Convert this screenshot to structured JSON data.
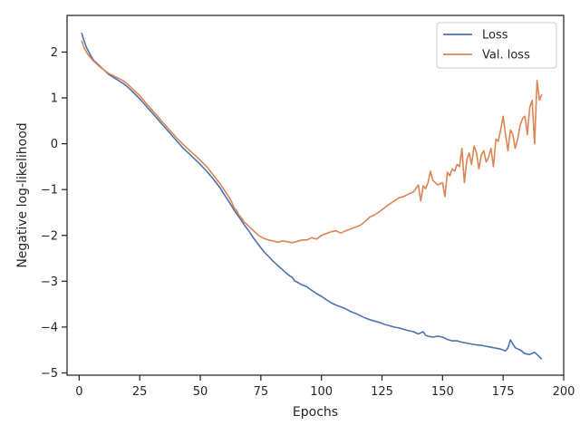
{
  "chart_data": {
    "type": "line",
    "title": "",
    "xlabel": "Epochs",
    "ylabel": "Negative log-likelihood",
    "xlim": [
      -5,
      200
    ],
    "ylim": [
      -5.05,
      2.8
    ],
    "xticks": [
      0,
      25,
      50,
      75,
      100,
      125,
      150,
      175,
      200
    ],
    "yticks": [
      -5,
      -4,
      -3,
      -2,
      -1,
      0,
      1,
      2
    ],
    "grid": false,
    "legend_position": "top-right",
    "series": [
      {
        "name": "Loss",
        "color": "#4c72b0",
        "x": [
          1,
          2,
          3,
          4,
          5,
          6,
          8,
          10,
          12,
          15,
          18,
          20,
          22,
          25,
          28,
          30,
          33,
          35,
          38,
          40,
          43,
          45,
          48,
          50,
          53,
          55,
          58,
          60,
          62,
          64,
          66,
          68,
          70,
          72,
          74,
          76,
          78,
          80,
          82,
          84,
          86,
          88,
          89,
          90,
          92,
          94,
          96,
          98,
          100,
          102,
          104,
          106,
          108,
          110,
          112,
          114,
          116,
          118,
          120,
          122,
          124,
          126,
          128,
          130,
          132,
          134,
          136,
          138,
          140,
          142,
          143,
          144,
          146,
          148,
          150,
          152,
          154,
          156,
          158,
          160,
          162,
          164,
          166,
          168,
          170,
          172,
          174,
          176,
          177,
          178,
          180,
          182,
          184,
          186,
          188,
          189,
          190,
          191
        ],
        "y": [
          2.42,
          2.25,
          2.1,
          2.0,
          1.9,
          1.82,
          1.72,
          1.62,
          1.52,
          1.42,
          1.32,
          1.24,
          1.14,
          0.98,
          0.8,
          0.68,
          0.5,
          0.38,
          0.2,
          0.08,
          -0.1,
          -0.2,
          -0.35,
          -0.45,
          -0.62,
          -0.75,
          -0.95,
          -1.12,
          -1.28,
          -1.45,
          -1.6,
          -1.76,
          -1.9,
          -2.06,
          -2.2,
          -2.34,
          -2.45,
          -2.56,
          -2.66,
          -2.75,
          -2.85,
          -2.92,
          -3.0,
          -3.02,
          -3.08,
          -3.12,
          -3.2,
          -3.27,
          -3.33,
          -3.4,
          -3.47,
          -3.52,
          -3.56,
          -3.6,
          -3.66,
          -3.7,
          -3.75,
          -3.8,
          -3.84,
          -3.87,
          -3.9,
          -3.94,
          -3.97,
          -4.0,
          -4.02,
          -4.05,
          -4.08,
          -4.1,
          -4.15,
          -4.1,
          -4.18,
          -4.2,
          -4.22,
          -4.2,
          -4.22,
          -4.27,
          -4.3,
          -4.3,
          -4.33,
          -4.35,
          -4.37,
          -4.39,
          -4.4,
          -4.42,
          -4.44,
          -4.46,
          -4.48,
          -4.52,
          -4.45,
          -4.28,
          -4.45,
          -4.5,
          -4.58,
          -4.6,
          -4.55,
          -4.6,
          -4.65,
          -4.7
        ]
      },
      {
        "name": "Val. loss",
        "color": "#dd8452",
        "x": [
          1,
          2,
          3,
          4,
          5,
          6,
          8,
          10,
          12,
          15,
          18,
          20,
          22,
          25,
          28,
          30,
          33,
          35,
          38,
          40,
          43,
          45,
          48,
          50,
          53,
          55,
          58,
          60,
          62,
          63,
          64,
          65,
          66,
          67,
          68,
          70,
          72,
          74,
          76,
          78,
          80,
          82,
          84,
          86,
          88,
          90,
          92,
          94,
          96,
          98,
          100,
          102,
          104,
          106,
          108,
          110,
          112,
          114,
          116,
          118,
          120,
          122,
          124,
          126,
          128,
          130,
          132,
          134,
          136,
          138,
          140,
          141,
          142,
          143,
          144,
          145,
          146,
          148,
          150,
          151,
          152,
          153,
          154,
          155,
          156,
          157,
          158,
          159,
          160,
          161,
          162,
          163,
          164,
          165,
          166,
          167,
          168,
          169,
          170,
          171,
          172,
          173,
          174,
          175,
          176,
          177,
          178,
          179,
          180,
          181,
          182,
          183,
          184,
          185,
          186,
          187,
          188,
          189,
          190,
          191
        ],
        "y": [
          2.25,
          2.1,
          2.0,
          1.92,
          1.86,
          1.8,
          1.7,
          1.62,
          1.54,
          1.46,
          1.38,
          1.3,
          1.2,
          1.05,
          0.86,
          0.74,
          0.56,
          0.44,
          0.26,
          0.14,
          -0.02,
          -0.12,
          -0.26,
          -0.36,
          -0.52,
          -0.66,
          -0.86,
          -1.02,
          -1.18,
          -1.28,
          -1.4,
          -1.46,
          -1.56,
          -1.62,
          -1.7,
          -1.8,
          -1.9,
          -2.0,
          -2.06,
          -2.1,
          -2.12,
          -2.15,
          -2.12,
          -2.14,
          -2.16,
          -2.13,
          -2.1,
          -2.1,
          -2.05,
          -2.08,
          -2.0,
          -1.96,
          -1.92,
          -1.9,
          -1.95,
          -1.9,
          -1.86,
          -1.82,
          -1.78,
          -1.7,
          -1.6,
          -1.55,
          -1.48,
          -1.4,
          -1.32,
          -1.25,
          -1.18,
          -1.15,
          -1.1,
          -1.05,
          -0.9,
          -1.25,
          -0.92,
          -0.98,
          -0.85,
          -0.6,
          -0.8,
          -0.9,
          -0.85,
          -1.15,
          -0.62,
          -0.7,
          -0.55,
          -0.6,
          -0.45,
          -0.5,
          -0.1,
          -0.85,
          -0.35,
          -0.2,
          -0.45,
          -0.05,
          -0.2,
          -0.55,
          -0.25,
          -0.15,
          -0.4,
          -0.3,
          -0.1,
          -0.5,
          0.1,
          0.05,
          0.3,
          0.6,
          0.2,
          -0.15,
          0.3,
          0.2,
          -0.1,
          0.1,
          0.4,
          0.55,
          0.6,
          0.2,
          0.8,
          0.95,
          0.0,
          1.38,
          0.95,
          1.08
        ]
      }
    ]
  }
}
